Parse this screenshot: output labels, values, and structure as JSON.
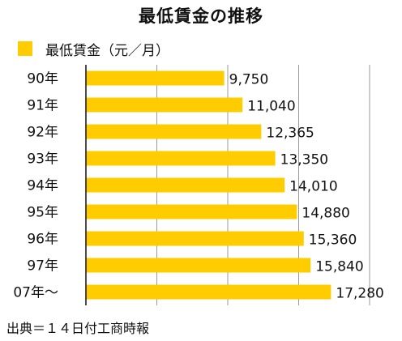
{
  "title": "最低賃金の推移",
  "legend": {
    "label": "最低賃金（元／月）"
  },
  "source": "出典＝１４日付工商時報",
  "colors": {
    "bar": "#FFCC00",
    "text": "#111111",
    "grid": "#9a9a9a",
    "axis": "#111111"
  },
  "chart_data": {
    "type": "bar",
    "orientation": "horizontal",
    "title": "最低賃金の推移",
    "categories": [
      "90年",
      "91年",
      "92年",
      "93年",
      "94年",
      "95年",
      "96年",
      "97年",
      "07年～"
    ],
    "series": [
      {
        "name": "最低賃金（元／月）",
        "values": [
          9750,
          11040,
          12365,
          13350,
          14010,
          14880,
          15360,
          15840,
          17280
        ]
      }
    ],
    "value_labels": [
      "9,750",
      "11,040",
      "12,365",
      "13,350",
      "14,010",
      "14,880",
      "15,360",
      "15,840",
      "17,280"
    ],
    "xlim": [
      0,
      20000
    ],
    "grid": true,
    "legend_position": "top-left",
    "source_note": "出典＝１４日付工商時報"
  }
}
